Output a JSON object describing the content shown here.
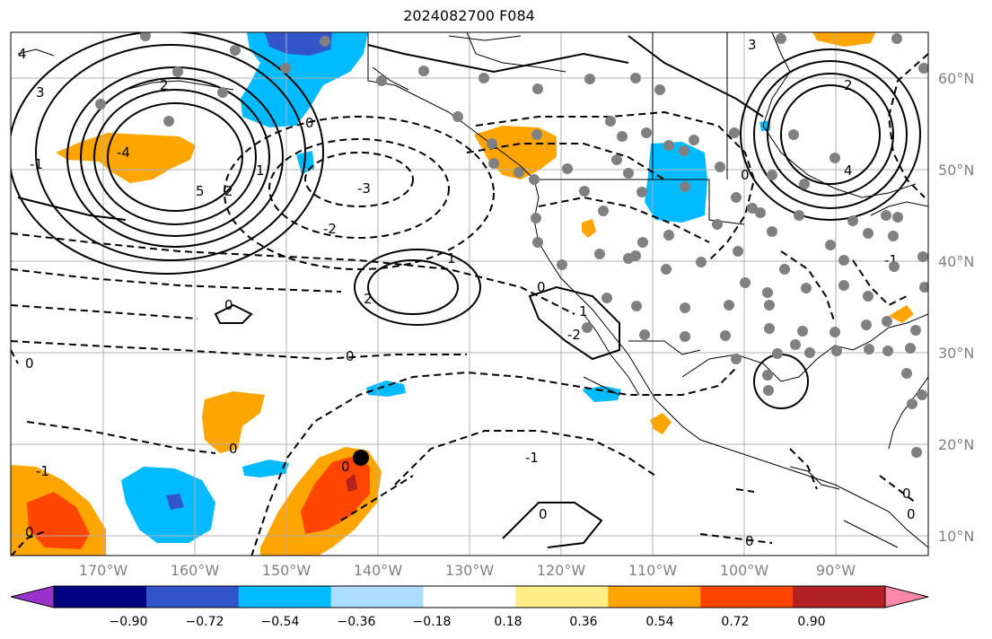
{
  "title": "2024082700 F084",
  "latitude_labels": [
    "60°N",
    "50°N",
    "40°N",
    "30°N",
    "20°N",
    "10°N"
  ],
  "longitude_labels": [
    "170°W",
    "160°W",
    "150°W",
    "140°W",
    "130°W",
    "120°W",
    "110°W",
    "100°W",
    "90°W"
  ],
  "colorbar": {
    "ticks": [
      "−0.90",
      "−0.72",
      "−0.54",
      "−0.36",
      "−0.18",
      "0.18",
      "0.36",
      "0.54",
      "0.72",
      "0.90"
    ],
    "colors": [
      "#9933cc",
      "#000080",
      "#3355cc",
      "#00bbff",
      "#aaddff",
      "#ffffff",
      "#ffee88",
      "#ffa500",
      "#ff4500",
      "#b22222",
      "#ff88aa"
    ]
  },
  "contour_labels": [
    "4",
    "3",
    "5",
    "2",
    "1",
    "0",
    "-1",
    "-2",
    "-3",
    "-4",
    "0",
    "-1",
    "1",
    "2",
    "-2",
    "0",
    "1",
    "-1",
    "0",
    "2",
    "3",
    "4",
    "5",
    "-2",
    "-1",
    "0",
    "1"
  ],
  "fill_colors": {
    "orange": "#ffa500",
    "red": "#ff4500",
    "darkred": "#b22222",
    "cyan": "#00bbff",
    "blue": "#3355cc",
    "ltblue": "#aaddff"
  },
  "station_color": "#808080"
}
